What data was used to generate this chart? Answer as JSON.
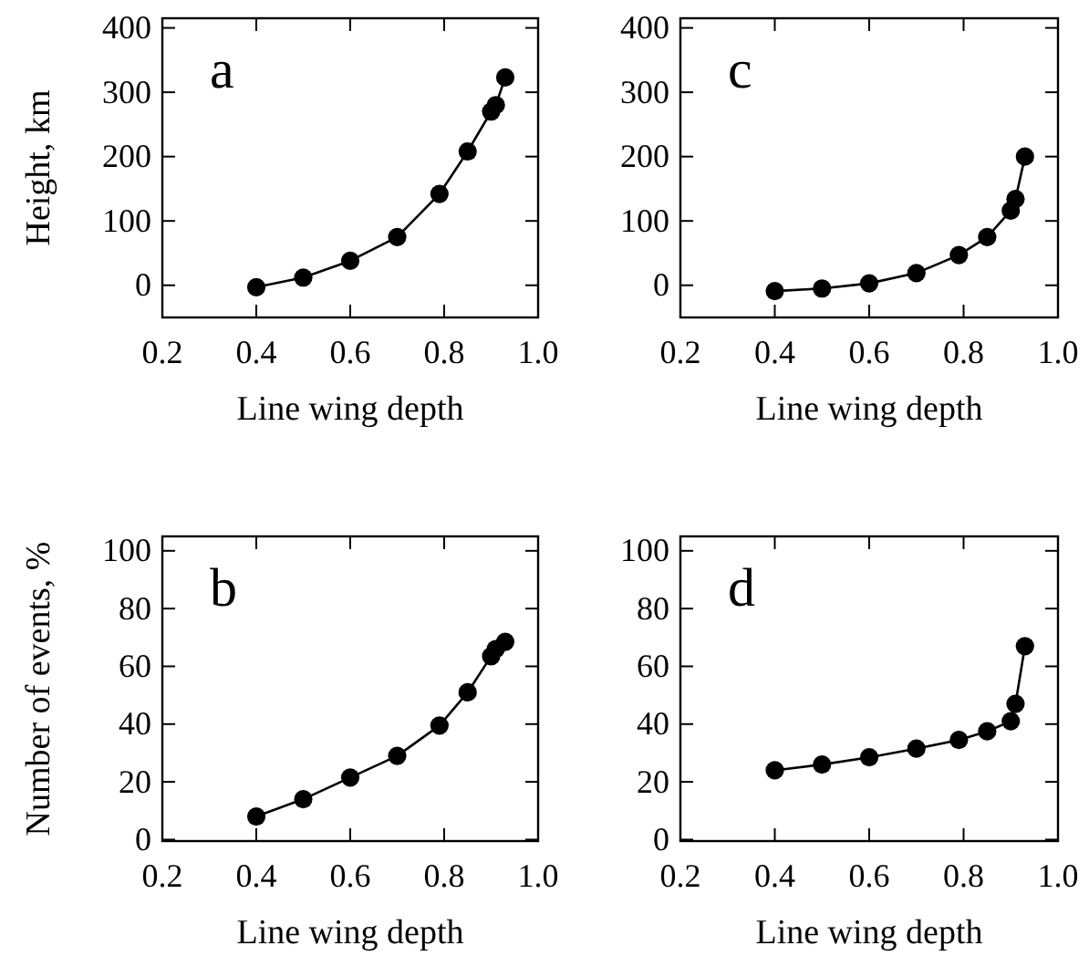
{
  "chart_data": [
    {
      "type": "line",
      "xlabel": "Line wing depth",
      "ylabel": "Height, km",
      "annotations": [
        "a"
      ],
      "marker": "circle",
      "xlim": [
        0.2,
        1.0
      ],
      "xticks": [
        {
          "value": 0.2,
          "label": "0.2"
        },
        {
          "value": 0.4,
          "label": "0.4"
        },
        {
          "value": 0.6,
          "label": "0.6"
        },
        {
          "value": 0.8,
          "label": "0.8"
        },
        {
          "value": 1.0,
          "label": "1.0"
        }
      ],
      "ylim": [
        -50,
        415
      ],
      "yticks": [
        0,
        100,
        200,
        300,
        400
      ],
      "series": [
        {
          "color": "#000000",
          "x": [
            0.4,
            0.5,
            0.6,
            0.7,
            0.79,
            0.85,
            0.9,
            0.91,
            0.93
          ],
          "values": [
            -3,
            12,
            38,
            75,
            142,
            208,
            270,
            280,
            323
          ]
        }
      ]
    },
    {
      "type": "line",
      "xlabel": "Line wing depth",
      "annotations": [
        "c"
      ],
      "marker": "circle",
      "xlim": [
        0.2,
        1.0
      ],
      "xticks": [
        {
          "value": 0.2,
          "label": "0.2"
        },
        {
          "value": 0.4,
          "label": "0.4"
        },
        {
          "value": 0.6,
          "label": "0.6"
        },
        {
          "value": 0.8,
          "label": "0.8"
        },
        {
          "value": 1.0,
          "label": "1.0"
        }
      ],
      "ylim": [
        -50,
        415
      ],
      "yticks": [
        0,
        100,
        200,
        300,
        400
      ],
      "series": [
        {
          "color": "#000000",
          "x": [
            0.4,
            0.5,
            0.6,
            0.7,
            0.79,
            0.85,
            0.9,
            0.91,
            0.93
          ],
          "values": [
            -9,
            -5,
            3,
            19,
            47,
            75,
            116,
            134,
            200
          ]
        }
      ]
    },
    {
      "type": "line",
      "xlabel": "Line wing depth",
      "ylabel": "Number of events, %",
      "annotations": [
        "b"
      ],
      "marker": "circle",
      "xlim": [
        0.2,
        1.0
      ],
      "xticks": [
        {
          "value": 0.2,
          "label": "0.2"
        },
        {
          "value": 0.4,
          "label": "0.4"
        },
        {
          "value": 0.6,
          "label": "0.6"
        },
        {
          "value": 0.8,
          "label": "0.8"
        },
        {
          "value": 1.0,
          "label": "1.0"
        }
      ],
      "ylim": [
        -0.5,
        105
      ],
      "yticks": [
        0,
        20,
        40,
        60,
        80,
        100
      ],
      "series": [
        {
          "color": "#000000",
          "x": [
            0.4,
            0.5,
            0.6,
            0.7,
            0.79,
            0.85,
            0.9,
            0.91,
            0.93
          ],
          "values": [
            8,
            14,
            21.5,
            29,
            39.5,
            51,
            63.5,
            66,
            68.5
          ]
        }
      ]
    },
    {
      "type": "line",
      "xlabel": "Line wing depth",
      "annotations": [
        "d"
      ],
      "marker": "circle",
      "xlim": [
        0.2,
        1.0
      ],
      "xticks": [
        {
          "value": 0.2,
          "label": "0.2"
        },
        {
          "value": 0.4,
          "label": "0.4"
        },
        {
          "value": 0.6,
          "label": "0.6"
        },
        {
          "value": 0.8,
          "label": "0.8"
        },
        {
          "value": 1.0,
          "label": "1.0"
        }
      ],
      "ylim": [
        -0.5,
        105
      ],
      "yticks": [
        0,
        20,
        40,
        60,
        80,
        100
      ],
      "series": [
        {
          "color": "#000000",
          "x": [
            0.4,
            0.5,
            0.6,
            0.7,
            0.79,
            0.85,
            0.9,
            0.91,
            0.93
          ],
          "values": [
            24,
            26,
            28.5,
            31.5,
            34.5,
            37.5,
            41,
            47,
            67
          ]
        }
      ]
    }
  ]
}
